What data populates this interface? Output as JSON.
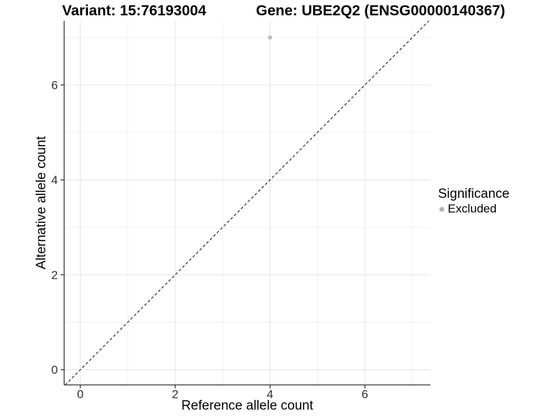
{
  "header": {
    "variant_title": "Variant: 15:76193004",
    "gene_title": "Gene: UBE2Q2 (ENSG00000140367)"
  },
  "legend": {
    "title": "Significance",
    "items": [
      {
        "label": "Excluded",
        "color": "#b6b6b6"
      }
    ]
  },
  "chart_data": {
    "type": "scatter",
    "title": "Variant: 15:76193004 | Gene: UBE2Q2 (ENSG00000140367)",
    "xlabel": "Reference allele count",
    "ylabel": "Alternative allele count",
    "xlim": [
      -0.34,
      7.38
    ],
    "ylim": [
      -0.32,
      7.35
    ],
    "xticks": [
      0,
      2,
      4,
      6
    ],
    "yticks": [
      0,
      2,
      4,
      6
    ],
    "minor_xticks": [
      1,
      3,
      5,
      7
    ],
    "minor_yticks": [
      1,
      3,
      5,
      7
    ],
    "grid": "on",
    "legend_position": "right",
    "series": [
      {
        "name": "Excluded",
        "color": "#bcbcbc",
        "points": [
          {
            "x": 4,
            "y": 7
          }
        ]
      }
    ],
    "reference_line": {
      "equation": "y = x",
      "style": "dashed",
      "color": "#000000"
    }
  },
  "style": {
    "axis_color": "#333333",
    "major_grid_color": "#e4e4e4",
    "minor_grid_color": "#f1f1f1",
    "tick_label_color": "#2e2e2e"
  }
}
